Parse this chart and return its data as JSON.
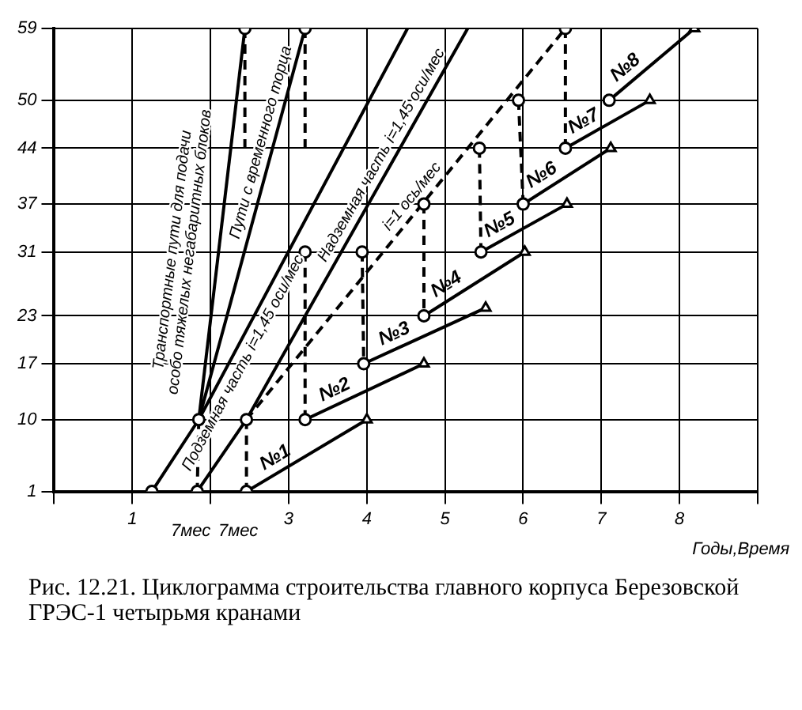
{
  "chart_data": {
    "type": "line",
    "xlabel": "Годы,Время",
    "annotations": [
      "Рис. 12.21. Циклограмма строительства главного корпуса Березовской ГРЭС-1 четырьмя кранами",
      "7мес",
      "7мес"
    ],
    "xlim": [
      0,
      9
    ],
    "xticks": [
      {
        "value": 0,
        "label": null
      },
      1,
      {
        "value": 2,
        "label": null
      },
      3,
      4,
      5,
      6,
      7,
      8,
      {
        "value": 9,
        "label": null
      }
    ],
    "ylim": [
      1,
      59
    ],
    "yticks": [
      1,
      10,
      17,
      23,
      31,
      37,
      44,
      50,
      59
    ],
    "grid": true,
    "legend": false,
    "series": [
      {
        "name": "Транспортные пути для подачи особо тяжелых негабаритных блоков",
        "color": "#000000",
        "x": [
          1.85,
          2.44
        ],
        "values": [
          10,
          59
        ]
      },
      {
        "name": "Пути с временного торца",
        "color": "#000000",
        "x": [
          1.85,
          3.21
        ],
        "values": [
          10,
          59
        ]
      },
      {
        "name": "Подземная часть i=1,45 оси/мес",
        "color": "#000000",
        "x": [
          1.25,
          1.85,
          4.52
        ],
        "values": [
          1,
          10,
          59
        ]
      },
      {
        "name": "Надземная часть i=1,45 оси/мес",
        "color": "#000000",
        "x": [
          1.83,
          2.46,
          5.29
        ],
        "values": [
          1,
          10,
          59
        ]
      },
      {
        "name": "i=1 ось/мес",
        "color": "#000000",
        "line_style": "dashed",
        "x": [
          2.46,
          6.54
        ],
        "values": [
          10,
          59
        ]
      },
      {
        "type": "line",
        "name": "№1",
        "color": "#000000",
        "x": [
          2.46,
          4.0
        ],
        "values": [
          1,
          10
        ]
      },
      {
        "type": "line",
        "name": "№2",
        "color": "#000000",
        "x": [
          3.21,
          4.73
        ],
        "values": [
          10,
          17
        ]
      },
      {
        "type": "line",
        "name": "№3",
        "color": "#000000",
        "x": [
          3.96,
          5.52
        ],
        "values": [
          17,
          24
        ]
      },
      {
        "type": "line",
        "name": "№4",
        "color": "#000000",
        "x": [
          4.73,
          6.02
        ],
        "values": [
          23,
          31
        ]
      },
      {
        "type": "line",
        "name": "№5",
        "color": "#000000",
        "x": [
          5.46,
          6.56
        ],
        "values": [
          31,
          37
        ]
      },
      {
        "type": "line",
        "name": "№6",
        "color": "#000000",
        "x": [
          6.0,
          7.12
        ],
        "values": [
          37,
          44
        ]
      },
      {
        "type": "line",
        "name": "№7",
        "color": "#000000",
        "x": [
          6.54,
          7.62
        ],
        "values": [
          44,
          50
        ]
      },
      {
        "type": "line",
        "name": "№8",
        "color": "#000000",
        "x": [
          7.1,
          8.19
        ],
        "values": [
          50,
          59
        ]
      },
      {
        "color": "#000000",
        "line_style": "dashed",
        "x": [
          1.85,
          1.83
        ],
        "values": [
          10,
          1
        ]
      },
      {
        "color": "#000000",
        "line_style": "dashed",
        "x": [
          2.46,
          2.46
        ],
        "values": [
          10,
          1
        ]
      },
      {
        "color": "#000000",
        "line_style": "dashed",
        "x": [
          2.44,
          2.44
        ],
        "values": [
          59,
          44
        ]
      },
      {
        "color": "#000000",
        "line_style": "dashed",
        "x": [
          3.21,
          3.21
        ],
        "values": [
          59,
          44
        ]
      },
      {
        "color": "#000000",
        "line_style": "dashed",
        "x": [
          3.21,
          3.21
        ],
        "values": [
          31,
          10
        ]
      },
      {
        "color": "#000000",
        "line_style": "dashed",
        "x": [
          3.94,
          3.96
        ],
        "values": [
          31,
          17
        ]
      },
      {
        "color": "#000000",
        "line_style": "dashed",
        "x": [
          4.73,
          4.73
        ],
        "values": [
          37,
          23
        ]
      },
      {
        "color": "#000000",
        "line_style": "dashed",
        "x": [
          5.44,
          5.46
        ],
        "values": [
          44,
          31
        ]
      },
      {
        "color": "#000000",
        "line_style": "dashed",
        "x": [
          5.94,
          6.0
        ],
        "values": [
          50,
          37
        ]
      },
      {
        "color": "#000000",
        "line_style": "dashed",
        "x": [
          6.54,
          6.54
        ],
        "values": [
          59,
          44
        ]
      },
      {
        "type": "scatter",
        "marker": "circle",
        "color": "#000000",
        "x": [
          1.25,
          1.83,
          2.46,
          1.85,
          2.46,
          3.21,
          3.96,
          4.73,
          5.46,
          6.0,
          6.54,
          7.1,
          2.44,
          3.21,
          6.54,
          3.21,
          3.94,
          4.73,
          5.44,
          5.94
        ],
        "values": [
          1,
          1,
          1,
          10,
          10,
          10,
          17,
          23,
          31,
          37,
          44,
          50,
          59,
          59,
          59,
          31,
          31,
          37,
          44,
          50
        ]
      },
      {
        "type": "scatter",
        "marker": "triangle",
        "color": "#000000",
        "x": [
          4.0,
          4.73,
          5.52,
          6.02,
          6.56,
          7.12,
          7.62,
          8.19
        ],
        "values": [
          10,
          17,
          24,
          31,
          37,
          44,
          50,
          59
        ]
      }
    ]
  }
}
